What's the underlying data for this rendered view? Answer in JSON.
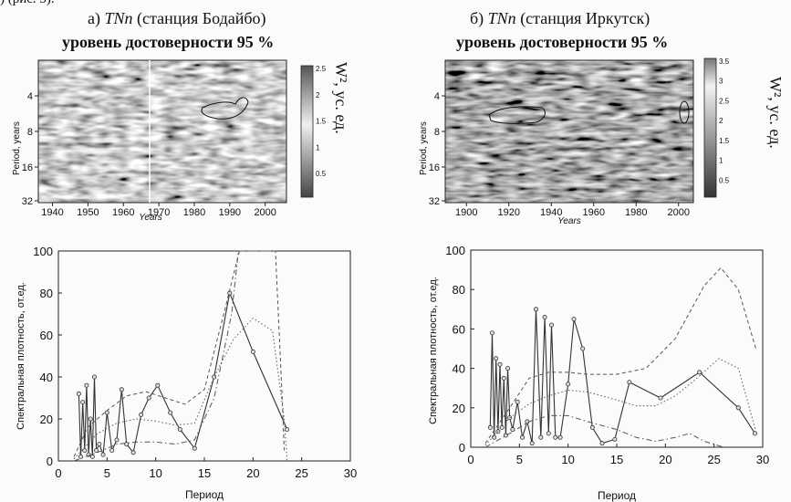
{
  "corner_text": ") (рис. 5).",
  "panel_a": {
    "title_prefix": "а) ",
    "title_var": "TNn",
    "title_rest": " (станция Бодайбо)",
    "subtitle": "уровень достоверности 95 %",
    "ylabel": "Period, years",
    "xlabel": "Years",
    "y_ticks": [
      "4",
      "8",
      "16",
      "32"
    ],
    "x_ticks": [
      "1940",
      "1950",
      "1960",
      "1970",
      "1980",
      "1990",
      "2000"
    ],
    "cbar_ticks": [
      "2.5",
      "2",
      "1.5",
      "1",
      "0.5"
    ],
    "cbar_label": "W², ус. ед."
  },
  "panel_b": {
    "title_prefix": "б) ",
    "title_var": "TNn",
    "title_rest": " (станция Иркутск)",
    "subtitle": "уровень достоверности 95 %",
    "ylabel": "Period, years",
    "xlabel": "Years",
    "y_ticks": [
      "4",
      "8",
      "16",
      "32"
    ],
    "x_ticks": [
      "1900",
      "1920",
      "1940",
      "1960",
      "1980",
      "2000"
    ],
    "cbar_ticks": [
      "3.5",
      "3",
      "2.5",
      "2",
      "1.5",
      "1",
      "0.5"
    ],
    "cbar_label": "W², ус. ед."
  },
  "chart_data": [
    {
      "type": "heatmap",
      "panel": "a",
      "x_range": [
        1936,
        2006
      ],
      "y_axis": "period (log2)",
      "y_ticks": [
        4,
        8,
        16,
        32
      ],
      "x_ticks": [
        1940,
        1950,
        1960,
        1970,
        1980,
        1990,
        2000
      ],
      "colorbar_range": [
        0,
        2.5
      ],
      "significance_contour": "95%"
    },
    {
      "type": "heatmap",
      "panel": "b",
      "x_range": [
        1890,
        2007
      ],
      "y_axis": "period (log2)",
      "y_ticks": [
        4,
        8,
        16,
        32
      ],
      "x_ticks": [
        1900,
        1920,
        1940,
        1960,
        1980,
        2000
      ],
      "colorbar_range": [
        0,
        3.5
      ],
      "significance_contour": "95%"
    },
    {
      "type": "line",
      "panel": "a",
      "xlabel": "Период",
      "ylabel": "Спектральная плотность, от.ед.",
      "xlim": [
        0,
        30
      ],
      "ylim": [
        0,
        100
      ],
      "x_ticks": [
        0,
        5,
        10,
        15,
        20,
        25,
        30
      ],
      "y_ticks": [
        0,
        20,
        40,
        60,
        80,
        100
      ],
      "series": [
        {
          "style": "solid",
          "points": [
            [
              2.1,
              32
            ],
            [
              2.3,
              2
            ],
            [
              2.5,
              28
            ],
            [
              2.7,
              5
            ],
            [
              2.9,
              36
            ],
            [
              3.1,
              3
            ],
            [
              3.3,
              20
            ],
            [
              3.5,
              2
            ],
            [
              3.7,
              40
            ],
            [
              3.9,
              5
            ],
            [
              4.2,
              8
            ],
            [
              4.6,
              3
            ],
            [
              5.0,
              23
            ],
            [
              5.5,
              5
            ],
            [
              6.0,
              10
            ],
            [
              6.5,
              34
            ],
            [
              7.0,
              8
            ],
            [
              7.7,
              4
            ],
            [
              8.5,
              22
            ],
            [
              9.3,
              30
            ],
            [
              10.2,
              36
            ],
            [
              11.5,
              23
            ],
            [
              12.5,
              15
            ],
            [
              14.0,
              6
            ],
            [
              16.0,
              40
            ],
            [
              17.6,
              80
            ],
            [
              20.0,
              52
            ],
            [
              23.5,
              15
            ]
          ]
        },
        {
          "style": "dashed",
          "points": [
            [
              1.6,
              2
            ],
            [
              3,
              16
            ],
            [
              5,
              24
            ],
            [
              7,
              31
            ],
            [
              9,
              33
            ],
            [
              11,
              30
            ],
            [
              13,
              27
            ],
            [
              15,
              34
            ],
            [
              17,
              70
            ],
            [
              18.6,
              100
            ],
            [
              21.5,
              100
            ],
            [
              22.3,
              100
            ],
            [
              23.0,
              30
            ],
            [
              23.2,
              5
            ]
          ]
        },
        {
          "style": "dotted",
          "points": [
            [
              1.6,
              1
            ],
            [
              4,
              13
            ],
            [
              6,
              18
            ],
            [
              8,
              20
            ],
            [
              10,
              19
            ],
            [
              12,
              17
            ],
            [
              14,
              18
            ],
            [
              16,
              40
            ],
            [
              18,
              58
            ],
            [
              20,
              68
            ],
            [
              22,
              62
            ],
            [
              23.2,
              20
            ],
            [
              23.5,
              0
            ]
          ]
        },
        {
          "style": "dashdot",
          "points": [
            [
              1.6,
              0
            ],
            [
              4,
              4
            ],
            [
              6,
              8
            ],
            [
              8,
              9
            ],
            [
              10,
              9
            ],
            [
              12,
              8
            ],
            [
              14,
              10
            ],
            [
              16,
              30
            ],
            [
              17.8,
              70
            ],
            [
              18.5,
              100
            ],
            [
              20.5,
              100
            ],
            [
              21.8,
              100
            ]
          ]
        }
      ]
    },
    {
      "type": "line",
      "panel": "b",
      "xlabel": "Период",
      "ylabel": "Спектральная плотность, от.ед.",
      "xlim": [
        0,
        30
      ],
      "ylim": [
        0,
        100
      ],
      "x_ticks": [
        0,
        5,
        10,
        15,
        20,
        25,
        30
      ],
      "y_ticks": [
        0,
        20,
        40,
        60,
        80,
        100
      ],
      "series": [
        {
          "style": "solid",
          "points": [
            [
              2.0,
              10
            ],
            [
              2.2,
              58
            ],
            [
              2.4,
              5
            ],
            [
              2.6,
              45
            ],
            [
              2.8,
              8
            ],
            [
              3.0,
              42
            ],
            [
              3.2,
              10
            ],
            [
              3.4,
              35
            ],
            [
              3.6,
              6
            ],
            [
              3.8,
              40
            ],
            [
              4.0,
              15
            ],
            [
              4.3,
              9
            ],
            [
              4.8,
              23
            ],
            [
              5.3,
              5
            ],
            [
              5.8,
              13
            ],
            [
              6.3,
              2
            ],
            [
              6.7,
              70
            ],
            [
              7.2,
              5
            ],
            [
              7.6,
              66
            ],
            [
              8.0,
              7
            ],
            [
              8.3,
              62
            ],
            [
              8.7,
              5
            ],
            [
              9.2,
              5
            ],
            [
              10.0,
              32
            ],
            [
              10.6,
              65
            ],
            [
              11.5,
              50
            ],
            [
              12.5,
              10
            ],
            [
              13.5,
              2
            ],
            [
              14.8,
              4
            ],
            [
              16.3,
              33
            ],
            [
              19.5,
              25
            ],
            [
              23.5,
              38
            ],
            [
              27.5,
              20
            ],
            [
              29.2,
              7
            ]
          ]
        },
        {
          "style": "dashed",
          "points": [
            [
              1.5,
              2
            ],
            [
              4,
              20
            ],
            [
              6,
              35
            ],
            [
              8,
              38
            ],
            [
              10,
              38
            ],
            [
              12,
              37
            ],
            [
              15,
              37
            ],
            [
              18,
              40
            ],
            [
              21,
              55
            ],
            [
              24,
              82
            ],
            [
              25.7,
              91
            ],
            [
              27.5,
              80
            ],
            [
              29.3,
              50
            ]
          ]
        },
        {
          "style": "dotted",
          "points": [
            [
              1.5,
              1
            ],
            [
              4,
              15
            ],
            [
              6,
              22
            ],
            [
              8,
              26
            ],
            [
              10,
              29
            ],
            [
              12,
              28
            ],
            [
              15,
              24
            ],
            [
              17,
              21
            ],
            [
              19,
              21
            ],
            [
              21,
              26
            ],
            [
              23,
              34
            ],
            [
              25.5,
              45
            ],
            [
              27.5,
              40
            ],
            [
              29.3,
              8
            ]
          ]
        },
        {
          "style": "dashdot",
          "points": [
            [
              1.5,
              0
            ],
            [
              4,
              7
            ],
            [
              6,
              13
            ],
            [
              8,
              16
            ],
            [
              10,
              16
            ],
            [
              12,
              13
            ],
            [
              15,
              9
            ],
            [
              17,
              5
            ],
            [
              19,
              3
            ],
            [
              21,
              5
            ],
            [
              22.5,
              7
            ],
            [
              24,
              3
            ],
            [
              26,
              0
            ]
          ]
        }
      ]
    }
  ]
}
